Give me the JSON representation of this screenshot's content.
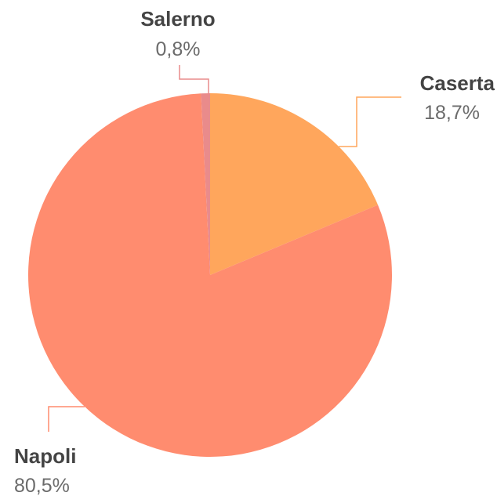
{
  "chart_data": {
    "type": "pie",
    "title": "",
    "legend": "none",
    "start_angle_deg": 0,
    "direction": "clockwise",
    "slices": [
      {
        "label": "Caserta",
        "value": 18.7,
        "value_text": "18,7%",
        "color": "#ffa65c"
      },
      {
        "label": "Napoli",
        "value": 80.5,
        "value_text": "80,5%",
        "color": "#ff8c6f"
      },
      {
        "label": "Salerno",
        "value": 0.8,
        "value_text": "0,8%",
        "color": "#e98b8b"
      }
    ]
  }
}
